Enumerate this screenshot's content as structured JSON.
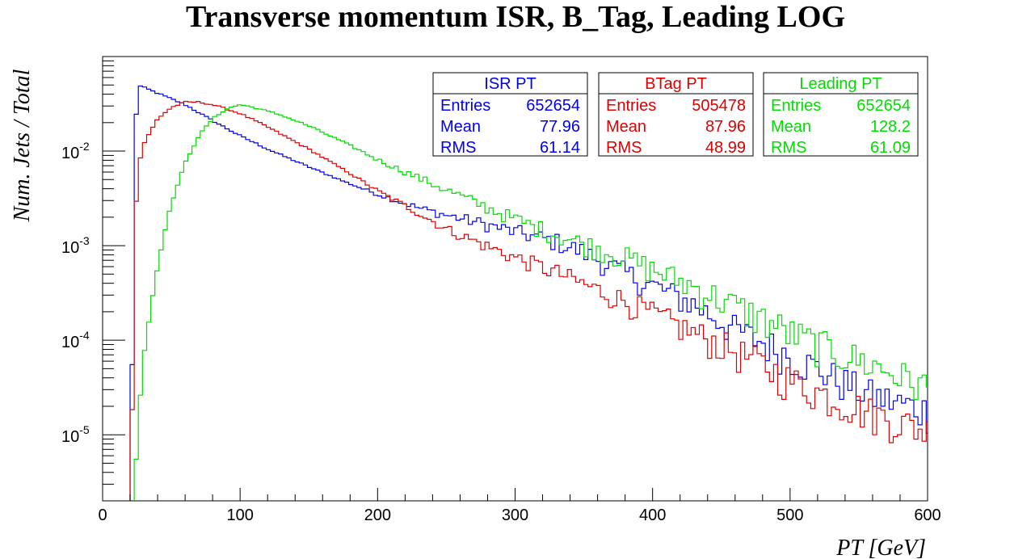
{
  "chart_data": {
    "type": "line",
    "title": "Transverse momentum ISR, B_Tag, Leading LOG",
    "xlabel": "PT [GeV]",
    "ylabel": "Num. Jets / Total",
    "xlim": [
      0,
      600
    ],
    "ylim": [
      2e-06,
      0.1
    ],
    "yscale": "log",
    "grid": false,
    "x_ticks": [
      {
        "value": 0,
        "label": "0"
      },
      {
        "value": 100,
        "label": "100"
      },
      {
        "value": 200,
        "label": "200"
      },
      {
        "value": 300,
        "label": "300"
      },
      {
        "value": 400,
        "label": "400"
      },
      {
        "value": 500,
        "label": "500"
      },
      {
        "value": 600,
        "label": "600"
      }
    ],
    "y_ticks": [
      {
        "value": 0.01,
        "base": "10",
        "exp": "-2"
      },
      {
        "value": 0.001,
        "base": "10",
        "exp": "-3"
      },
      {
        "value": 0.0001,
        "base": "10",
        "exp": "-4"
      },
      {
        "value": 1e-05,
        "base": "10",
        "exp": "-5"
      }
    ],
    "bin_width": 3,
    "series": [
      {
        "name": "ISR PT",
        "color": "#0000ee",
        "points": [
          [
            20,
            1e-06
          ],
          [
            23,
            0.003
          ],
          [
            25,
            0.05
          ],
          [
            30,
            0.047
          ],
          [
            40,
            0.041
          ],
          [
            60,
            0.031
          ],
          [
            80,
            0.021
          ],
          [
            100,
            0.0145
          ],
          [
            120,
            0.0105
          ],
          [
            150,
            0.0068
          ],
          [
            180,
            0.0045
          ],
          [
            200,
            0.0035
          ],
          [
            230,
            0.0025
          ],
          [
            250,
            0.0021
          ],
          [
            270,
            0.0018
          ],
          [
            300,
            0.0014
          ],
          [
            330,
            0.0011
          ],
          [
            350,
            0.00085
          ],
          [
            370,
            0.0006
          ],
          [
            400,
            0.00038
          ],
          [
            430,
            0.00024
          ],
          [
            460,
            0.00013
          ],
          [
            500,
            7e-05
          ],
          [
            530,
            4.2e-05
          ],
          [
            560,
            2.6e-05
          ],
          [
            600,
            1.8e-05
          ]
        ],
        "stats": {
          "title": "ISR PT",
          "rows": [
            {
              "label": "Entries",
              "value": "652654"
            },
            {
              "label": "Mean",
              "value": "77.96"
            },
            {
              "label": "RMS",
              "value": "61.14"
            }
          ]
        }
      },
      {
        "name": "BTag PT",
        "color": "#dd0000",
        "points": [
          [
            20,
            1e-06
          ],
          [
            23,
            0.00035
          ],
          [
            25,
            0.006
          ],
          [
            30,
            0.012
          ],
          [
            40,
            0.022
          ],
          [
            50,
            0.029
          ],
          [
            60,
            0.033
          ],
          [
            70,
            0.033
          ],
          [
            80,
            0.031
          ],
          [
            100,
            0.025
          ],
          [
            120,
            0.018
          ],
          [
            150,
            0.0105
          ],
          [
            180,
            0.0058
          ],
          [
            200,
            0.0038
          ],
          [
            230,
            0.0022
          ],
          [
            250,
            0.0015
          ],
          [
            280,
            0.00098
          ],
          [
            300,
            0.00075
          ],
          [
            330,
            0.00052
          ],
          [
            350,
            0.00039
          ],
          [
            380,
            0.00026
          ],
          [
            400,
            0.00019
          ],
          [
            430,
            0.00012
          ],
          [
            450,
            9e-05
          ],
          [
            480,
            5.5e-05
          ],
          [
            500,
            3.8e-05
          ],
          [
            530,
            2.5e-05
          ],
          [
            560,
            1.7e-05
          ],
          [
            600,
            1.1e-05
          ]
        ],
        "stats": {
          "title": "BTag PT",
          "rows": [
            {
              "label": "Entries",
              "value": "505478"
            },
            {
              "label": "Mean",
              "value": "87.96"
            },
            {
              "label": "RMS",
              "value": "48.99"
            }
          ]
        }
      },
      {
        "name": "Leading PT",
        "color": "#00dd00",
        "points": [
          [
            23,
            1e-06
          ],
          [
            25,
            1e-05
          ],
          [
            30,
            7e-05
          ],
          [
            35,
            0.00022
          ],
          [
            40,
            0.0006
          ],
          [
            45,
            0.0014
          ],
          [
            50,
            0.0028
          ],
          [
            60,
            0.0075
          ],
          [
            70,
            0.0145
          ],
          [
            80,
            0.022
          ],
          [
            90,
            0.028
          ],
          [
            100,
            0.031
          ],
          [
            110,
            0.029
          ],
          [
            130,
            0.024
          ],
          [
            150,
            0.0185
          ],
          [
            180,
            0.0115
          ],
          [
            200,
            0.0081
          ],
          [
            230,
            0.0052
          ],
          [
            250,
            0.0039
          ],
          [
            270,
            0.0029
          ],
          [
            300,
            0.0019
          ],
          [
            330,
            0.0013
          ],
          [
            350,
            0.00105
          ],
          [
            380,
            0.00075
          ],
          [
            400,
            0.00056
          ],
          [
            430,
            0.00037
          ],
          [
            450,
            0.00027
          ],
          [
            480,
            0.00017
          ],
          [
            500,
            0.00012
          ],
          [
            530,
            8e-05
          ],
          [
            560,
            5.5e-05
          ],
          [
            600,
            3.2e-05
          ]
        ],
        "stats": {
          "title": "Leading PT",
          "rows": [
            {
              "label": "Entries",
              "value": "652654"
            },
            {
              "label": "Mean",
              "value": "128.2"
            },
            {
              "label": "RMS",
              "value": "61.09"
            }
          ]
        }
      }
    ]
  }
}
